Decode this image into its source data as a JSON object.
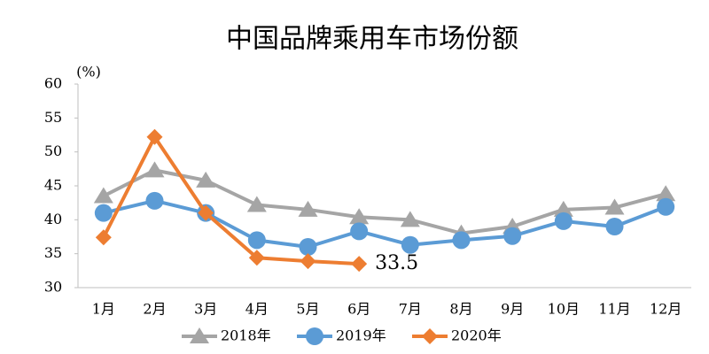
{
  "chart_data": {
    "type": "line",
    "title": "中国品牌乘用车市场份额",
    "y_unit": "(%)",
    "categories": [
      "1月",
      "2月",
      "3月",
      "4月",
      "5月",
      "6月",
      "7月",
      "8月",
      "9月",
      "10月",
      "11月",
      "12月"
    ],
    "series": [
      {
        "name": "2018年",
        "color": "#a5a5a5",
        "marker": "triangle",
        "values": [
          43.5,
          47.3,
          45.8,
          42.2,
          41.5,
          40.4,
          40.0,
          38.0,
          39.0,
          41.5,
          41.8,
          43.8
        ]
      },
      {
        "name": "2019年",
        "color": "#5b9bd5",
        "marker": "circle",
        "values": [
          41.0,
          42.8,
          41.0,
          37.0,
          36.0,
          38.3,
          36.3,
          37.0,
          37.6,
          39.8,
          39.0,
          41.9
        ]
      },
      {
        "name": "2020年",
        "color": "#ed7d31",
        "marker": "diamond",
        "values": [
          37.4,
          52.2,
          41.0,
          34.4,
          33.9,
          33.5,
          null,
          null,
          null,
          null,
          null,
          null
        ]
      }
    ],
    "ylim": [
      30,
      60
    ],
    "yticks": [
      30,
      35,
      40,
      45,
      50,
      55,
      60
    ],
    "grid": false,
    "legend": "bottom"
  }
}
